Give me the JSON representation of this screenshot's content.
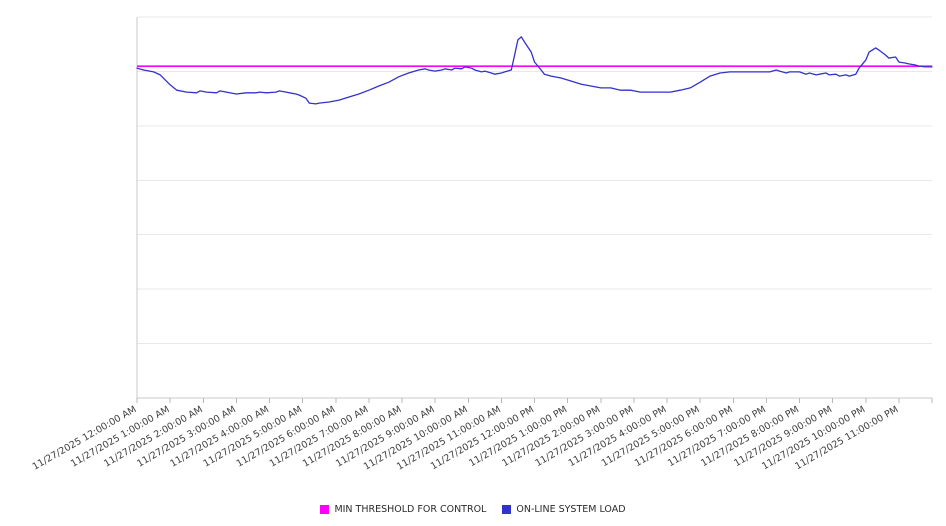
{
  "chart_data": {
    "type": "line",
    "title": "",
    "xlabel": "",
    "ylabel": "",
    "x_unit": "hours",
    "x_range": [
      0,
      24
    ],
    "ylim": [
      0,
      100
    ],
    "y_tick_labels": [],
    "grid": {
      "horizontal_divisions": 7,
      "gridlines": true
    },
    "legend_position": "bottom",
    "x_tick_labels": [
      "11/27/2025 12:00:00 AM",
      "11/27/2025 1:00:00 AM",
      "11/27/2025 2:00:00 AM",
      "11/27/2025 3:00:00 AM",
      "11/27/2025 4:00:00 AM",
      "11/27/2025 5:00:00 AM",
      "11/27/2025 6:00:00 AM",
      "11/27/2025 7:00:00 AM",
      "11/27/2025 8:00:00 AM",
      "11/27/2025 9:00:00 AM",
      "11/27/2025 10:00:00 AM",
      "11/27/2025 11:00:00 AM",
      "11/27/2025 12:00:00 PM",
      "11/27/2025 1:00:00 PM",
      "11/27/2025 2:00:00 PM",
      "11/27/2025 3:00:00 PM",
      "11/27/2025 4:00:00 PM",
      "11/27/2025 5:00:00 PM",
      "11/27/2025 6:00:00 PM",
      "11/27/2025 7:00:00 PM",
      "11/27/2025 8:00:00 PM",
      "11/27/2025 9:00:00 PM",
      "11/27/2025 10:00:00 PM",
      "11/27/2025 11:00:00 PM"
    ],
    "series": [
      {
        "name": "MIN THRESHOLD FOR CONTROL",
        "color": "#ff00ff",
        "style": "horizontal-line",
        "value": 87.1
      },
      {
        "name": "ON-LINE SYSTEM LOAD",
        "color": "#3232cd",
        "style": "line",
        "points": [
          [
            0,
            86.6
          ],
          [
            0.2,
            86.1
          ],
          [
            0.5,
            85.6
          ],
          [
            0.7,
            84.8
          ],
          [
            1,
            82.2
          ],
          [
            1.2,
            80.8
          ],
          [
            1.5,
            80.3
          ],
          [
            1.8,
            80.1
          ],
          [
            1.9,
            80.6
          ],
          [
            2.1,
            80.3
          ],
          [
            2.4,
            80.1
          ],
          [
            2.5,
            80.6
          ],
          [
            2.7,
            80.3
          ],
          [
            3,
            79.8
          ],
          [
            3.3,
            80.1
          ],
          [
            3.6,
            80.1
          ],
          [
            3.7,
            80.3
          ],
          [
            3.9,
            80.1
          ],
          [
            4.2,
            80.3
          ],
          [
            4.3,
            80.6
          ],
          [
            4.5,
            80.3
          ],
          [
            4.6,
            80.1
          ],
          [
            4.8,
            79.8
          ],
          [
            4.9,
            79.5
          ],
          [
            5.1,
            78.7
          ],
          [
            5.2,
            77.4
          ],
          [
            5.4,
            77.2
          ],
          [
            5.5,
            77.4
          ],
          [
            5.8,
            77.7
          ],
          [
            6.1,
            78.2
          ],
          [
            6.4,
            79
          ],
          [
            6.7,
            79.8
          ],
          [
            7,
            80.8
          ],
          [
            7.3,
            81.9
          ],
          [
            7.6,
            82.9
          ],
          [
            7.9,
            84.3
          ],
          [
            8.2,
            85.3
          ],
          [
            8.5,
            86.1
          ],
          [
            8.7,
            86.4
          ],
          [
            8.8,
            86.1
          ],
          [
            9,
            85.8
          ],
          [
            9.2,
            86.1
          ],
          [
            9.3,
            86.4
          ],
          [
            9.5,
            86.1
          ],
          [
            9.6,
            86.6
          ],
          [
            9.8,
            86.4
          ],
          [
            9.9,
            86.9
          ],
          [
            10.1,
            86.6
          ],
          [
            10.2,
            86.1
          ],
          [
            10.4,
            85.6
          ],
          [
            10.5,
            85.8
          ],
          [
            10.7,
            85.3
          ],
          [
            10.8,
            85
          ],
          [
            11,
            85.3
          ],
          [
            11.1,
            85.6
          ],
          [
            11.3,
            86.1
          ],
          [
            11.4,
            90
          ],
          [
            11.5,
            94
          ],
          [
            11.6,
            94.8
          ],
          [
            11.7,
            93.4
          ],
          [
            11.9,
            90.8
          ],
          [
            12,
            88.2
          ],
          [
            12.2,
            86.1
          ],
          [
            12.3,
            85
          ],
          [
            12.5,
            84.5
          ],
          [
            12.8,
            84
          ],
          [
            13.1,
            83.2
          ],
          [
            13.4,
            82.4
          ],
          [
            13.7,
            81.9
          ],
          [
            14,
            81.4
          ],
          [
            14.3,
            81.4
          ],
          [
            14.6,
            80.8
          ],
          [
            14.9,
            80.8
          ],
          [
            15.2,
            80.3
          ],
          [
            15.5,
            80.3
          ],
          [
            15.8,
            80.3
          ],
          [
            16.1,
            80.3
          ],
          [
            16.4,
            80.8
          ],
          [
            16.7,
            81.4
          ],
          [
            17,
            82.9
          ],
          [
            17.3,
            84.5
          ],
          [
            17.6,
            85.3
          ],
          [
            17.9,
            85.6
          ],
          [
            18.2,
            85.6
          ],
          [
            18.5,
            85.6
          ],
          [
            18.8,
            85.6
          ],
          [
            19.1,
            85.6
          ],
          [
            19.3,
            86.1
          ],
          [
            19.4,
            85.8
          ],
          [
            19.6,
            85.3
          ],
          [
            19.7,
            85.6
          ],
          [
            20,
            85.6
          ],
          [
            20.2,
            85
          ],
          [
            20.3,
            85.3
          ],
          [
            20.5,
            84.8
          ],
          [
            20.6,
            85
          ],
          [
            20.8,
            85.3
          ],
          [
            20.9,
            84.8
          ],
          [
            21.1,
            85
          ],
          [
            21.2,
            84.5
          ],
          [
            21.4,
            84.8
          ],
          [
            21.5,
            84.5
          ],
          [
            21.7,
            85
          ],
          [
            21.8,
            86.6
          ],
          [
            22,
            88.7
          ],
          [
            22.1,
            90.8
          ],
          [
            22.3,
            91.9
          ],
          [
            22.4,
            91.3
          ],
          [
            22.6,
            90
          ],
          [
            22.7,
            89.2
          ],
          [
            22.9,
            89.5
          ],
          [
            23,
            88.2
          ],
          [
            23.2,
            87.9
          ],
          [
            23.3,
            87.7
          ],
          [
            23.5,
            87.4
          ],
          [
            23.6,
            87.1
          ],
          [
            23.8,
            86.9
          ],
          [
            24,
            86.9
          ]
        ]
      }
    ]
  },
  "legend": {
    "items": [
      {
        "label": "MIN THRESHOLD FOR CONTROL",
        "color": "#ff00ff"
      },
      {
        "label": "ON-LINE SYSTEM LOAD",
        "color": "#3232cd"
      }
    ]
  }
}
